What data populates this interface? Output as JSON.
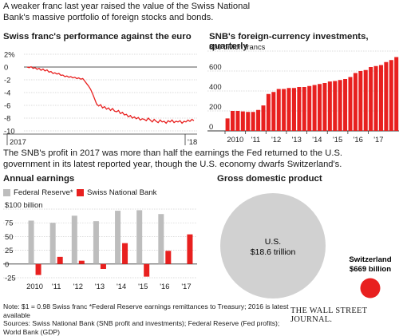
{
  "intro": "A weaker franc last year raised the value of the Swiss National Bank's massive portfolio of foreign stocks and bonds.",
  "middle_text": "The SNB's profit in 2017 was more than half the earnings the Fed returned to the U.S. government in its latest reported year, though the U.S. economy dwarfs Switzerland's.",
  "footnote": "Note: $1 = 0.98 Swiss franc   *Federal Reserve earnings remittances to Treasury; 2016 is latest available",
  "sources": "Sources: Swiss National Bank (SNB profit and investments); Federal Reserve (Fed profits); World Bank (GDP)",
  "publisher": "THE WALL STREET JOURNAL.",
  "colors": {
    "red": "#e8201f",
    "gray": "#bdbdbd",
    "ink": "#1a1a1a",
    "grid": "#cfcfcf"
  },
  "chart_data": [
    {
      "type": "line",
      "title": "Swiss franc's performance against the euro",
      "ylim": [
        -10,
        2
      ],
      "yticks": [
        "2%",
        "0",
        "-2",
        "-4",
        "-6",
        "-8",
        "-10"
      ],
      "xticks": [
        "2017",
        "'18"
      ],
      "grid": true,
      "points": [
        [
          0,
          0.0
        ],
        [
          2,
          -0.1
        ],
        [
          4,
          0.05
        ],
        [
          6,
          -0.2
        ],
        [
          8,
          -0.1
        ],
        [
          10,
          -0.35
        ],
        [
          12,
          -0.2
        ],
        [
          14,
          -0.5
        ],
        [
          16,
          -0.3
        ],
        [
          18,
          -0.6
        ],
        [
          20,
          -0.45
        ],
        [
          22,
          -0.8
        ],
        [
          24,
          -0.7
        ],
        [
          26,
          -1.0
        ],
        [
          28,
          -0.9
        ],
        [
          30,
          -1.1
        ],
        [
          32,
          -1.0
        ],
        [
          34,
          -1.3
        ],
        [
          36,
          -1.25
        ],
        [
          38,
          -1.5
        ],
        [
          40,
          -1.4
        ],
        [
          42,
          -1.6
        ],
        [
          44,
          -1.5
        ],
        [
          46,
          -1.7
        ],
        [
          48,
          -1.6
        ],
        [
          50,
          -1.8
        ],
        [
          52,
          -1.7
        ],
        [
          54,
          -1.9
        ],
        [
          56,
          -1.8
        ],
        [
          58,
          -2.2
        ],
        [
          60,
          -2.6
        ],
        [
          62,
          -3.0
        ],
        [
          64,
          -3.5
        ],
        [
          66,
          -4.2
        ],
        [
          68,
          -5.0
        ],
        [
          70,
          -5.8
        ],
        [
          72,
          -6.1
        ],
        [
          74,
          -5.9
        ],
        [
          76,
          -6.4
        ],
        [
          78,
          -6.2
        ],
        [
          80,
          -6.6
        ],
        [
          82,
          -6.4
        ],
        [
          84,
          -6.8
        ],
        [
          86,
          -6.5
        ],
        [
          88,
          -6.9
        ],
        [
          90,
          -7.0
        ],
        [
          92,
          -6.8
        ],
        [
          94,
          -7.3
        ],
        [
          96,
          -7.1
        ],
        [
          98,
          -7.5
        ],
        [
          100,
          -7.4
        ],
        [
          102,
          -7.8
        ],
        [
          104,
          -7.6
        ],
        [
          106,
          -8.0
        ],
        [
          108,
          -7.8
        ],
        [
          110,
          -8.1
        ],
        [
          112,
          -7.9
        ],
        [
          114,
          -8.3
        ],
        [
          116,
          -8.1
        ],
        [
          118,
          -8.2
        ],
        [
          120,
          -8.4
        ],
        [
          122,
          -8.0
        ],
        [
          124,
          -8.3
        ],
        [
          126,
          -8.6
        ],
        [
          128,
          -8.2
        ],
        [
          130,
          -8.5
        ],
        [
          132,
          -8.7
        ],
        [
          134,
          -8.3
        ],
        [
          136,
          -8.6
        ],
        [
          138,
          -8.5
        ],
        [
          140,
          -8.8
        ],
        [
          142,
          -8.4
        ],
        [
          144,
          -8.6
        ],
        [
          146,
          -8.3
        ],
        [
          148,
          -8.7
        ],
        [
          150,
          -8.5
        ],
        [
          152,
          -8.6
        ],
        [
          154,
          -8.4
        ],
        [
          156,
          -8.8
        ],
        [
          158,
          -8.5
        ],
        [
          160,
          -8.6
        ],
        [
          162,
          -8.3
        ],
        [
          164,
          -8.5
        ],
        [
          166,
          -8.2
        ],
        [
          168,
          -8.4
        ]
      ]
    },
    {
      "type": "bar",
      "title": "SNB's foreign-currency investments, quarterly",
      "ylabel": "billion francs",
      "yticks": [
        "800 billion francs",
        "600",
        "400",
        "200",
        "0"
      ],
      "ylim": [
        0,
        800
      ],
      "xticks": [
        "2010",
        "'11",
        "'12",
        "'13",
        "'14",
        "'15",
        "'16",
        "'17"
      ],
      "values": [
        125,
        200,
        200,
        195,
        190,
        190,
        210,
        255,
        370,
        390,
        420,
        420,
        430,
        430,
        440,
        440,
        450,
        460,
        470,
        480,
        495,
        500,
        510,
        520,
        540,
        580,
        600,
        610,
        640,
        650,
        660,
        690,
        710,
        740
      ]
    },
    {
      "type": "bar",
      "title": "Annual earnings",
      "ylim": [
        -25,
        100
      ],
      "yticks": [
        "$100 billion",
        "75",
        "50",
        "25",
        "0",
        "-25"
      ],
      "categories": [
        "2010",
        "'11",
        "'12",
        "'13",
        "'14",
        "'15",
        "'16",
        "'17"
      ],
      "series": [
        {
          "name": "Federal Reserve*",
          "values": [
            79,
            75,
            88,
            78,
            97,
            98,
            91,
            null
          ]
        },
        {
          "name": "Swiss National Bank",
          "values": [
            -20,
            13,
            6,
            -9,
            38,
            -23,
            24,
            54
          ]
        }
      ]
    },
    {
      "type": "bubble",
      "title": "Gross domestic product",
      "items": [
        {
          "name": "U.S.",
          "label": "$18.6 trillion",
          "value": 18.6
        },
        {
          "name": "Switzerland",
          "label": "$669 billion",
          "value": 0.669
        }
      ]
    }
  ]
}
